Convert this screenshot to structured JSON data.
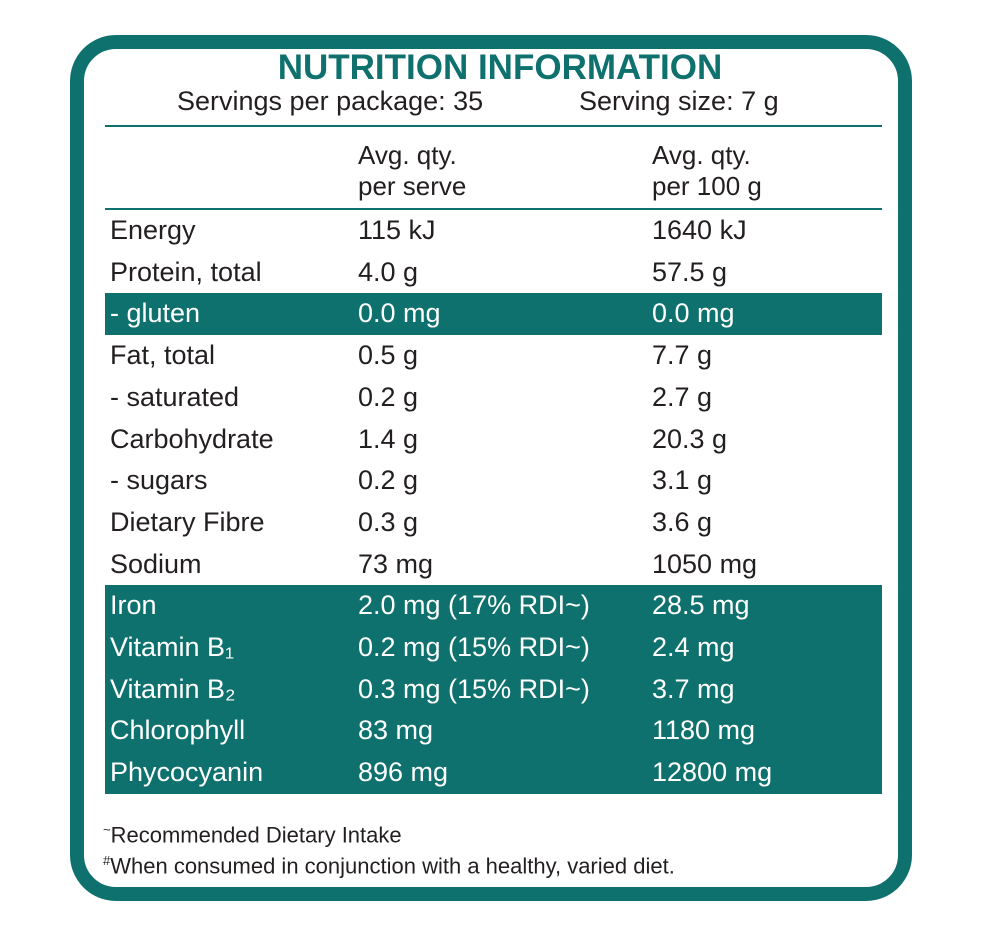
{
  "header": {
    "title": "NUTRITION INFORMATION",
    "servings": "Servings per package: 35",
    "serving_size": "Serving size: 7 g"
  },
  "table": {
    "columns": [
      "Avg. qty.\nper serve",
      "Avg. qty.\nper 100 g"
    ],
    "rows": [
      {
        "name": "Energy",
        "per_serve": "115 kJ",
        "per_100g": "1640 kJ",
        "highlight": false
      },
      {
        "name": "Protein, total",
        "per_serve": "4.0 g",
        "per_100g": "57.5 g",
        "highlight": false
      },
      {
        "name": "- gluten",
        "per_serve": "0.0 mg",
        "per_100g": "0.0 mg",
        "highlight": true
      },
      {
        "name": "Fat, total",
        "per_serve": "0.5 g",
        "per_100g": "7.7 g",
        "highlight": false
      },
      {
        "name": "- saturated",
        "per_serve": "0.2 g",
        "per_100g": "2.7 g",
        "highlight": false
      },
      {
        "name": "Carbohydrate",
        "per_serve": "1.4 g",
        "per_100g": "20.3 g",
        "highlight": false
      },
      {
        "name": "- sugars",
        "per_serve": "0.2 g",
        "per_100g": "3.1 g",
        "highlight": false
      },
      {
        "name": "Dietary Fibre",
        "per_serve": "0.3 g",
        "per_100g": "3.6 g",
        "highlight": false
      },
      {
        "name": "Sodium",
        "per_serve": "73 mg",
        "per_100g": "1050 mg",
        "highlight": false
      },
      {
        "name": "Iron",
        "per_serve": "2.0 mg (17% RDI~)",
        "per_100g": "28.5 mg",
        "highlight": true
      },
      {
        "name": "Vitamin B₁",
        "per_serve": "0.2 mg (15% RDI~)",
        "per_100g": "2.4 mg",
        "highlight": true
      },
      {
        "name": "Vitamin B₂",
        "per_serve": "0.3 mg (15% RDI~)",
        "per_100g": "3.7 mg",
        "highlight": true
      },
      {
        "name": "Chlorophyll",
        "per_serve": "83 mg",
        "per_100g": "1180 mg",
        "highlight": true
      },
      {
        "name": "Phycocyanin",
        "per_serve": "896 mg",
        "per_100g": "12800 mg",
        "highlight": true
      }
    ]
  },
  "footnotes": [
    {
      "mark": "~",
      "text": "Recommended Dietary Intake"
    },
    {
      "mark": "#",
      "text": "When consumed in conjunction with a healthy, varied diet."
    }
  ]
}
